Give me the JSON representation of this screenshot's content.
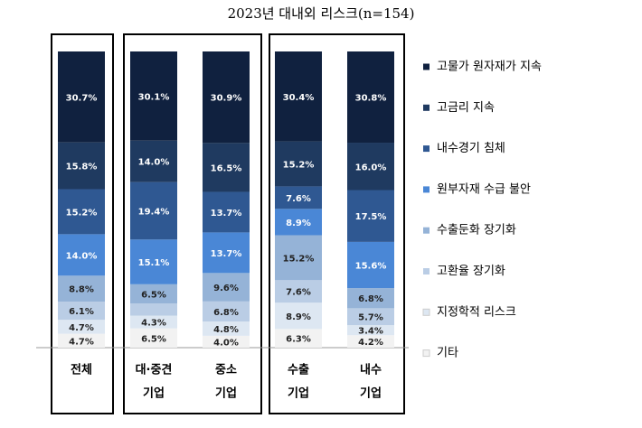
{
  "chart_data": {
    "type": "stacked_bar_100",
    "title": "2023년 대내외 리스크(n=154)",
    "categories": [
      [
        "전체"
      ],
      [
        "대·중견",
        "기업"
      ],
      [
        "중소",
        "기업"
      ],
      [
        "수출",
        "기업"
      ],
      [
        "내수",
        "기업"
      ]
    ],
    "series": [
      {
        "name": "고물가 원자재가 지속",
        "color": "#10213f",
        "values": [
          30.7,
          30.1,
          30.9,
          30.4,
          30.8
        ],
        "value_labels": [
          "30.7%",
          "30.1%",
          "30.9%",
          "30.4%",
          "30.8%"
        ]
      },
      {
        "name": "고금리 지속",
        "color": "#1f3a60",
        "values": [
          15.8,
          14.0,
          16.5,
          15.2,
          16.0
        ],
        "value_labels": [
          "15.8%",
          "14.0%",
          "16.5%",
          "15.2%",
          "16.0%"
        ]
      },
      {
        "name": "내수경기 침체",
        "color": "#2f5892",
        "values": [
          15.2,
          19.4,
          13.7,
          7.6,
          17.5
        ],
        "value_labels": [
          "15.2%",
          "19.4%",
          "13.7%",
          "7.6%",
          "17.5%"
        ]
      },
      {
        "name": "원부자재 수급 불안",
        "color": "#4a87d6",
        "values": [
          14.0,
          15.1,
          13.7,
          8.9,
          15.6
        ],
        "value_labels": [
          "14.0%",
          "15.1%",
          "13.7%",
          "8.9%",
          "15.6%"
        ]
      },
      {
        "name": "수출둔화 장기화",
        "color": "#95b3d7",
        "values": [
          8.8,
          6.5,
          9.6,
          15.2,
          6.8
        ],
        "value_labels": [
          "8.8%",
          "6.5%",
          "9.6%",
          "15.2%",
          "6.8%"
        ]
      },
      {
        "name": "고환율 장기화",
        "color": "#bacde5",
        "values": [
          6.1,
          4.1,
          6.8,
          7.6,
          5.7
        ],
        "value_labels": [
          "6.1%",
          null,
          "6.8%",
          "7.6%",
          "5.7%"
        ]
      },
      {
        "name": "지정학적 리스크",
        "color": "#dde7f2",
        "values": [
          4.7,
          4.3,
          4.8,
          8.9,
          3.4
        ],
        "value_labels": [
          "4.7%",
          "4.3%",
          "4.8%",
          "8.9%",
          "3.4%"
        ]
      },
      {
        "name": "기타",
        "color": "#f2f2f2",
        "values": [
          4.7,
          6.5,
          4.0,
          6.3,
          4.2
        ],
        "value_labels": [
          "4.7%",
          "6.5%",
          "4.0%",
          "6.3%",
          "4.2%"
        ]
      }
    ]
  }
}
